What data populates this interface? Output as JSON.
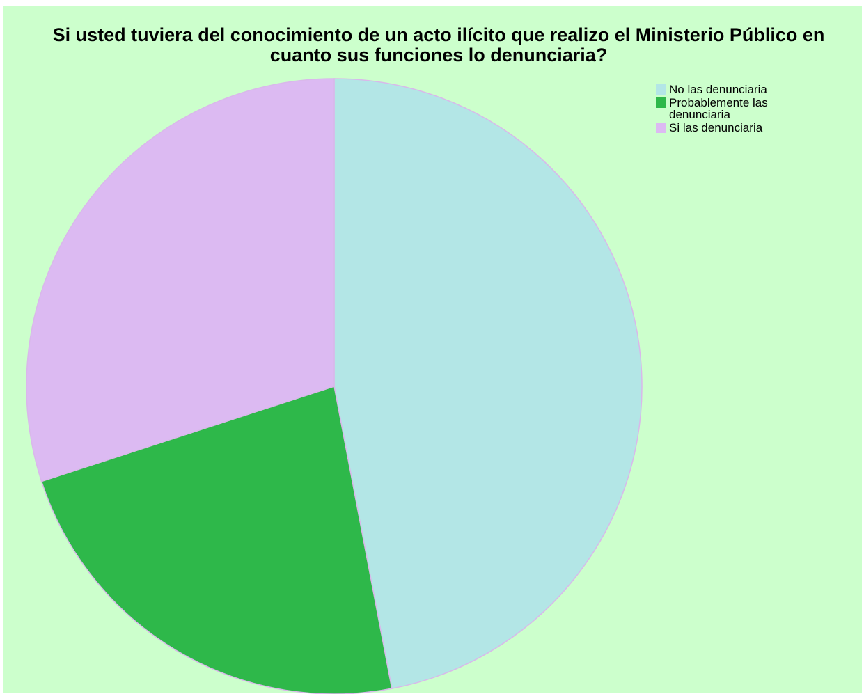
{
  "chart_data": {
    "type": "pie",
    "title": "Si usted tuviera del conocimiento de un acto ilícito que realizo el Ministerio Público en cuanto sus funciones lo denunciaria?",
    "categories": [
      "No las denunciaria",
      "Probablemente las denunciaria",
      "Si las denunciaria"
    ],
    "values": [
      47,
      23,
      30
    ],
    "colors": [
      "#b3e6e6",
      "#2eb84a",
      "#dcbaf2"
    ],
    "legend": "top-right"
  }
}
